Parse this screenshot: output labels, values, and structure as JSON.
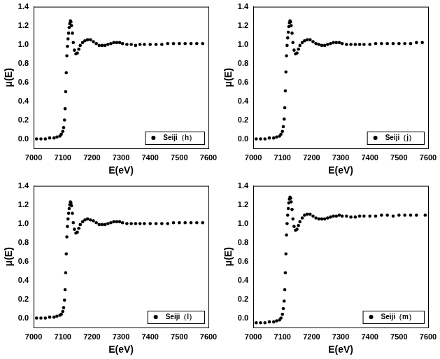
{
  "chart_data": [
    {
      "type": "scatter",
      "x_label": "E(eV)",
      "y_label": "μ(E)",
      "grid": false,
      "legend": "lower right",
      "xlim": [
        7000,
        7600
      ],
      "xticks": [
        7000,
        7100,
        7200,
        7300,
        7400,
        7500,
        7600
      ],
      "ylim": [
        -0.1,
        1.4
      ],
      "yticks": [
        {
          "value": 0,
          "label": "0.0"
        },
        0.2,
        0.4,
        0.6,
        0.8,
        {
          "value": 1,
          "label": "1.0"
        },
        1.2,
        1.4
      ],
      "x": [
        7010,
        7025,
        7040,
        7055,
        7070,
        7080,
        7090,
        7095,
        7100,
        7103,
        7106,
        7108,
        7110,
        7112,
        7114,
        7116,
        7118,
        7120,
        7122,
        7124,
        7126,
        7128,
        7130,
        7133,
        7136,
        7140,
        7145,
        7150,
        7155,
        7160,
        7168,
        7176,
        7185,
        7195,
        7205,
        7215,
        7225,
        7235,
        7245,
        7255,
        7265,
        7275,
        7285,
        7295,
        7305,
        7320,
        7335,
        7350,
        7365,
        7380,
        7400,
        7420,
        7440,
        7460,
        7480,
        7500,
        7520,
        7540,
        7560,
        7580
      ],
      "series": [
        {
          "name": "Seiji（h）",
          "color": "#000000",
          "marker": "circle",
          "values": [
            0.0,
            0.0,
            0.0,
            0.01,
            0.01,
            0.02,
            0.03,
            0.05,
            0.08,
            0.12,
            0.2,
            0.32,
            0.5,
            0.7,
            0.88,
            0.98,
            1.06,
            1.12,
            1.18,
            1.22,
            1.25,
            1.24,
            1.2,
            1.12,
            1.02,
            0.94,
            0.9,
            0.91,
            0.95,
            0.99,
            1.02,
            1.04,
            1.05,
            1.05,
            1.03,
            1.01,
            0.99,
            0.99,
            0.99,
            1.0,
            1.01,
            1.02,
            1.02,
            1.02,
            1.01,
            1.0,
            1.0,
            0.99,
            1.0,
            1.0,
            1.0,
            1.0,
            1.0,
            1.01,
            1.01,
            1.01,
            1.01,
            1.01,
            1.01,
            1.01
          ]
        }
      ]
    },
    {
      "type": "scatter",
      "x_label": "E(eV)",
      "y_label": "μ(E)",
      "grid": false,
      "legend": "lower right",
      "xlim": [
        7000,
        7600
      ],
      "xticks": [
        7000,
        7100,
        7200,
        7300,
        7400,
        7500,
        7600
      ],
      "ylim": [
        -0.1,
        1.4
      ],
      "yticks": [
        {
          "value": 0,
          "label": "0.0"
        },
        0.2,
        0.4,
        0.6,
        0.8,
        {
          "value": 1,
          "label": "1.0"
        },
        1.2,
        1.4
      ],
      "x": [
        7010,
        7025,
        7040,
        7055,
        7070,
        7080,
        7090,
        7095,
        7100,
        7103,
        7106,
        7108,
        7110,
        7112,
        7114,
        7116,
        7118,
        7120,
        7122,
        7124,
        7126,
        7128,
        7130,
        7133,
        7136,
        7140,
        7145,
        7150,
        7155,
        7160,
        7168,
        7176,
        7185,
        7195,
        7205,
        7215,
        7225,
        7235,
        7245,
        7255,
        7265,
        7275,
        7285,
        7295,
        7305,
        7320,
        7335,
        7350,
        7365,
        7380,
        7400,
        7420,
        7440,
        7460,
        7480,
        7500,
        7520,
        7540,
        7560,
        7580
      ],
      "series": [
        {
          "name": "Seiji（j）",
          "color": "#000000",
          "marker": "circle",
          "values": [
            0.0,
            0.0,
            0.0,
            0.01,
            0.01,
            0.02,
            0.03,
            0.05,
            0.08,
            0.13,
            0.21,
            0.33,
            0.51,
            0.71,
            0.88,
            0.99,
            1.07,
            1.13,
            1.19,
            1.23,
            1.25,
            1.24,
            1.2,
            1.12,
            1.02,
            0.94,
            0.9,
            0.91,
            0.95,
            0.99,
            1.02,
            1.04,
            1.05,
            1.05,
            1.03,
            1.01,
            1.0,
            0.99,
            0.99,
            1.0,
            1.01,
            1.02,
            1.02,
            1.02,
            1.01,
            1.0,
            1.0,
            1.0,
            1.0,
            1.0,
            1.0,
            1.01,
            1.01,
            1.01,
            1.01,
            1.01,
            1.01,
            1.01,
            1.02,
            1.02
          ]
        }
      ]
    },
    {
      "type": "scatter",
      "x_label": "E(eV)",
      "y_label": "μ(E)",
      "grid": false,
      "legend": "lower right",
      "xlim": [
        7000,
        7600
      ],
      "xticks": [
        7000,
        7100,
        7200,
        7300,
        7400,
        7500,
        7600
      ],
      "ylim": [
        -0.1,
        1.4
      ],
      "yticks": [
        {
          "value": 0,
          "label": "0.0"
        },
        0.2,
        0.4,
        0.6,
        0.8,
        {
          "value": 1,
          "label": "1.0"
        },
        1.2,
        1.4
      ],
      "x": [
        7010,
        7025,
        7040,
        7055,
        7070,
        7080,
        7090,
        7095,
        7100,
        7103,
        7106,
        7108,
        7110,
        7112,
        7114,
        7116,
        7118,
        7120,
        7122,
        7124,
        7126,
        7128,
        7130,
        7133,
        7136,
        7140,
        7145,
        7150,
        7155,
        7160,
        7168,
        7176,
        7185,
        7195,
        7205,
        7215,
        7225,
        7235,
        7245,
        7255,
        7265,
        7275,
        7285,
        7295,
        7305,
        7320,
        7335,
        7350,
        7365,
        7380,
        7400,
        7420,
        7440,
        7460,
        7480,
        7500,
        7520,
        7540,
        7560,
        7580
      ],
      "series": [
        {
          "name": "Seiji（l）",
          "color": "#000000",
          "marker": "circle",
          "values": [
            0.0,
            0.0,
            0.0,
            0.01,
            0.01,
            0.02,
            0.03,
            0.04,
            0.07,
            0.11,
            0.19,
            0.3,
            0.48,
            0.68,
            0.86,
            0.97,
            1.05,
            1.11,
            1.16,
            1.2,
            1.23,
            1.22,
            1.19,
            1.11,
            1.01,
            0.94,
            0.9,
            0.91,
            0.95,
            0.99,
            1.02,
            1.04,
            1.05,
            1.04,
            1.03,
            1.01,
            0.99,
            0.99,
            0.99,
            1.0,
            1.01,
            1.02,
            1.02,
            1.02,
            1.01,
            1.0,
            1.0,
            1.0,
            1.0,
            1.0,
            1.0,
            1.0,
            1.0,
            1.0,
            1.01,
            1.01,
            1.01,
            1.01,
            1.01,
            1.01
          ]
        }
      ]
    },
    {
      "type": "scatter",
      "x_label": "E(eV)",
      "y_label": "μ(E)",
      "grid": false,
      "legend": "lower right",
      "xlim": [
        7000,
        7600
      ],
      "xticks": [
        7000,
        7100,
        7200,
        7300,
        7400,
        7500,
        7600
      ],
      "ylim": [
        -0.1,
        1.4
      ],
      "yticks": [
        {
          "value": 0,
          "label": "0.0"
        },
        0.2,
        0.4,
        0.6,
        0.8,
        {
          "value": 1,
          "label": "1.0"
        },
        1.2,
        1.4
      ],
      "x": [
        7010,
        7025,
        7040,
        7055,
        7070,
        7080,
        7090,
        7095,
        7100,
        7103,
        7106,
        7108,
        7110,
        7112,
        7114,
        7116,
        7118,
        7120,
        7122,
        7124,
        7126,
        7128,
        7130,
        7133,
        7136,
        7140,
        7145,
        7150,
        7155,
        7160,
        7168,
        7176,
        7185,
        7195,
        7205,
        7215,
        7225,
        7235,
        7245,
        7255,
        7265,
        7275,
        7285,
        7295,
        7305,
        7320,
        7335,
        7350,
        7365,
        7380,
        7400,
        7420,
        7440,
        7460,
        7480,
        7500,
        7520,
        7540,
        7560,
        7590
      ],
      "series": [
        {
          "name": "Seiji（m）",
          "color": "#000000",
          "marker": "circle",
          "values": [
            -0.05,
            -0.05,
            -0.05,
            -0.04,
            -0.04,
            -0.03,
            -0.02,
            0.0,
            0.04,
            0.1,
            0.18,
            0.3,
            0.48,
            0.68,
            0.88,
            1.0,
            1.09,
            1.16,
            1.22,
            1.26,
            1.28,
            1.27,
            1.23,
            1.15,
            1.05,
            0.97,
            0.93,
            0.94,
            0.98,
            1.02,
            1.06,
            1.09,
            1.1,
            1.1,
            1.08,
            1.06,
            1.05,
            1.05,
            1.05,
            1.06,
            1.07,
            1.08,
            1.08,
            1.09,
            1.08,
            1.08,
            1.07,
            1.07,
            1.08,
            1.08,
            1.08,
            1.08,
            1.09,
            1.09,
            1.08,
            1.09,
            1.09,
            1.09,
            1.09,
            1.09
          ]
        }
      ]
    }
  ]
}
